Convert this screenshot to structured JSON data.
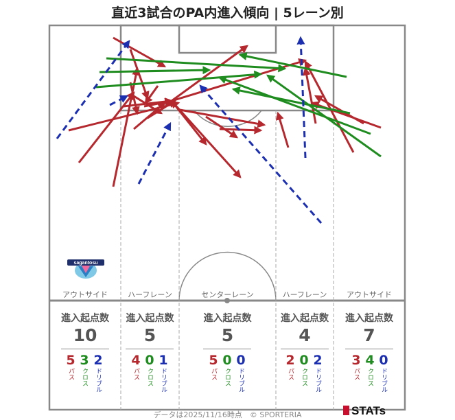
{
  "title": "直近3試合のPA内進入傾向 | 5レーン別",
  "colors": {
    "pass": "#b5282e",
    "cross": "#1f8c1f",
    "dribble": "#1b2fb0",
    "pitch_line": "#888888"
  },
  "lanes": [
    {
      "label": "アウトサイド",
      "stat_heading": "進入起点数",
      "total": "10",
      "pass": "5",
      "cross": "3",
      "dribble": "2"
    },
    {
      "label": "ハーフレーン",
      "stat_heading": "進入起点数",
      "total": "5",
      "pass": "4",
      "cross": "0",
      "dribble": "1"
    },
    {
      "label": "センターレーン",
      "stat_heading": "進入起点数",
      "total": "5",
      "pass": "5",
      "cross": "0",
      "dribble": "0"
    },
    {
      "label": "ハーフレーン",
      "stat_heading": "進入起点数",
      "total": "4",
      "pass": "2",
      "cross": "0",
      "dribble": "2"
    },
    {
      "label": "アウトサイド",
      "stat_heading": "進入起点数",
      "total": "7",
      "pass": "3",
      "cross": "4",
      "dribble": "0"
    }
  ],
  "type_labels": {
    "pass": "パス",
    "cross": "クロス",
    "dribble": "ドリブル"
  },
  "team_logo_text": "sagantosu",
  "footer": "データは2025/11/16時点　© SPORTERIA",
  "brand": "STATs"
}
